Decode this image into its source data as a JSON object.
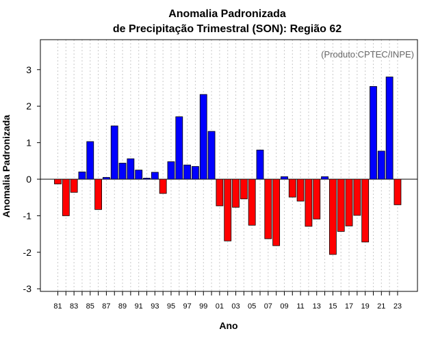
{
  "chart_data": {
    "type": "bar",
    "title": "Anomalia Padronizada",
    "subtitle": "de Precipitação Trimestral (SON): Região 62",
    "xlabel": "Ano",
    "ylabel": "Anomalia Padronizada",
    "annotation": "(Produto:CPTEC/INPE)",
    "ylim": [
      -3.1,
      3.8
    ],
    "yticks": [
      -3,
      -2,
      -1,
      0,
      1,
      2,
      3
    ],
    "categories": [
      "81",
      "82",
      "83",
      "84",
      "85",
      "86",
      "87",
      "88",
      "89",
      "90",
      "91",
      "92",
      "93",
      "94",
      "95",
      "96",
      "97",
      "98",
      "99",
      "00",
      "01",
      "02",
      "03",
      "04",
      "05",
      "06",
      "07",
      "08",
      "09",
      "10",
      "11",
      "12",
      "13",
      "14",
      "15",
      "16",
      "17",
      "18",
      "19",
      "20",
      "21",
      "22",
      "23"
    ],
    "tick_labels": [
      "81",
      "83",
      "85",
      "87",
      "89",
      "91",
      "93",
      "95",
      "97",
      "99",
      "01",
      "03",
      "05",
      "07",
      "09",
      "11",
      "13",
      "15",
      "17",
      "19",
      "21",
      "23"
    ],
    "values": [
      -0.13,
      -1.0,
      -0.36,
      0.2,
      1.03,
      -0.83,
      0.05,
      1.46,
      0.44,
      0.56,
      0.25,
      0.03,
      0.19,
      -0.39,
      0.48,
      1.71,
      0.39,
      0.35,
      2.32,
      1.31,
      -0.73,
      -1.69,
      -0.77,
      -0.54,
      -1.26,
      0.8,
      -1.63,
      -1.82,
      0.07,
      -0.49,
      -0.6,
      -1.29,
      -1.09,
      0.07,
      -2.06,
      -1.43,
      -1.28,
      -0.99,
      -1.72,
      2.54,
      0.77,
      2.8,
      -0.7
    ],
    "colors": {
      "positive": "#0000ff",
      "negative": "#ff0000",
      "edge": "#000000",
      "grid": "#c8c8c8"
    }
  }
}
